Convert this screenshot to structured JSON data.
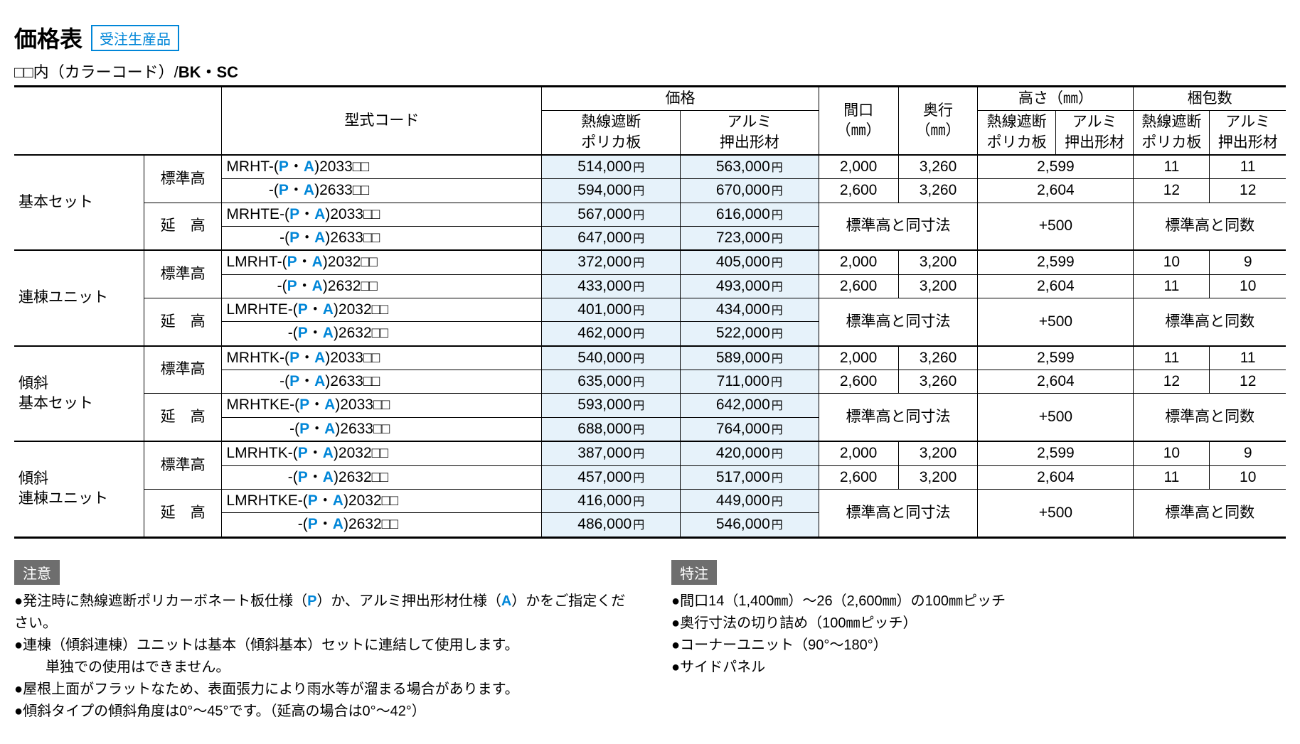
{
  "title": "価格表",
  "order_tag": "受注生産品",
  "color_code_label": "□□内（カラーコード）/",
  "color_code_suffix": "BK・SC",
  "headers": {
    "model": "型式コード",
    "price": "価格",
    "price_sub1": "熱線遮断\nポリカ板",
    "price_sub2": "アルミ\n押出形材",
    "width": "間口\n（㎜）",
    "depth": "奥行\n（㎜）",
    "height": "高さ（㎜）",
    "height_sub1": "熱線遮断\nポリカ板",
    "height_sub2": "アルミ\n押出形材",
    "packs": "梱包数",
    "packs_sub1": "熱線遮断\nポリカ板",
    "packs_sub2": "アルミ\n押出形材"
  },
  "yen": "円",
  "sections": [
    {
      "category": "基本セット",
      "subgroups": [
        {
          "sub": "標準高",
          "sub_spaced": false,
          "rows": [
            {
              "model_prefix": "MRHT-",
              "model_suffix": "2033",
              "p1": "514,000",
              "p2": "563,000",
              "w": "2,000",
              "d": "3,260",
              "h": "2,599",
              "pk1": "11",
              "pk2": "11"
            },
            {
              "model_prefix": "-",
              "model_suffix": "2633",
              "p1": "594,000",
              "p2": "670,000",
              "w": "2,600",
              "d": "3,260",
              "h": "2,604",
              "pk1": "12",
              "pk2": "12"
            }
          ]
        },
        {
          "sub": "延　高",
          "sub_spaced": false,
          "merged": {
            "wd": "標準高と同寸法",
            "h": "+500",
            "pk": "標準高と同数"
          },
          "rows": [
            {
              "model_prefix": "MRHTE-",
              "model_suffix": "2033",
              "p1": "567,000",
              "p2": "616,000"
            },
            {
              "model_prefix": "-",
              "model_suffix": "2633",
              "p1": "647,000",
              "p2": "723,000"
            }
          ]
        }
      ]
    },
    {
      "category": "連棟ユニット",
      "subgroups": [
        {
          "sub": "標準高",
          "sub_spaced": false,
          "rows": [
            {
              "model_prefix": "LMRHT-",
              "model_suffix": "2032",
              "p1": "372,000",
              "p2": "405,000",
              "w": "2,000",
              "d": "3,200",
              "h": "2,599",
              "pk1": "10",
              "pk2": "9"
            },
            {
              "model_prefix": "-",
              "model_suffix": "2632",
              "p1": "433,000",
              "p2": "493,000",
              "w": "2,600",
              "d": "3,200",
              "h": "2,604",
              "pk1": "11",
              "pk2": "10"
            }
          ]
        },
        {
          "sub": "延　高",
          "sub_spaced": false,
          "merged": {
            "wd": "標準高と同寸法",
            "h": "+500",
            "pk": "標準高と同数"
          },
          "rows": [
            {
              "model_prefix": "LMRHTE-",
              "model_suffix": "2032",
              "p1": "401,000",
              "p2": "434,000"
            },
            {
              "model_prefix": "-",
              "model_suffix": "2632",
              "p1": "462,000",
              "p2": "522,000"
            }
          ]
        }
      ]
    },
    {
      "category": "傾斜\n基本セット",
      "subgroups": [
        {
          "sub": "標準高",
          "sub_spaced": false,
          "rows": [
            {
              "model_prefix": "MRHTK-",
              "model_suffix": "2033",
              "p1": "540,000",
              "p2": "589,000",
              "w": "2,000",
              "d": "3,260",
              "h": "2,599",
              "pk1": "11",
              "pk2": "11"
            },
            {
              "model_prefix": "-",
              "model_suffix": "2633",
              "p1": "635,000",
              "p2": "711,000",
              "w": "2,600",
              "d": "3,260",
              "h": "2,604",
              "pk1": "12",
              "pk2": "12"
            }
          ]
        },
        {
          "sub": "延　高",
          "sub_spaced": false,
          "merged": {
            "wd": "標準高と同寸法",
            "h": "+500",
            "pk": "標準高と同数"
          },
          "rows": [
            {
              "model_prefix": "MRHTKE-",
              "model_suffix": "2033",
              "p1": "593,000",
              "p2": "642,000"
            },
            {
              "model_prefix": "-",
              "model_suffix": "2633",
              "p1": "688,000",
              "p2": "764,000"
            }
          ]
        }
      ]
    },
    {
      "category": "傾斜\n連棟ユニット",
      "subgroups": [
        {
          "sub": "標準高",
          "sub_spaced": false,
          "rows": [
            {
              "model_prefix": "LMRHTK-",
              "model_suffix": "2032",
              "p1": "387,000",
              "p2": "420,000",
              "w": "2,000",
              "d": "3,200",
              "h": "2,599",
              "pk1": "10",
              "pk2": "9"
            },
            {
              "model_prefix": "-",
              "model_suffix": "2632",
              "p1": "457,000",
              "p2": "517,000",
              "w": "2,600",
              "d": "3,200",
              "h": "2,604",
              "pk1": "11",
              "pk2": "10"
            }
          ]
        },
        {
          "sub": "延　高",
          "sub_spaced": false,
          "merged": {
            "wd": "標準高と同寸法",
            "h": "+500",
            "pk": "標準高と同数"
          },
          "rows": [
            {
              "model_prefix": "LMRHTKE-",
              "model_suffix": "2032",
              "p1": "416,000",
              "p2": "449,000"
            },
            {
              "model_prefix": "-",
              "model_suffix": "2632",
              "p1": "486,000",
              "p2": "546,000"
            }
          ]
        }
      ]
    }
  ],
  "notes": {
    "caution_tag": "注意",
    "caution_items": [
      "●発注時に熱線遮断ポリカーボネート板仕様（<P>）か、アルミ押出形材仕様（<A>）かをご指定ください。",
      "●連棟（傾斜連棟）ユニットは基本（傾斜基本）セットに連結して使用します。\n　単独での使用はできません。",
      "●屋根上面がフラットなため、表面張力により雨水等が溜まる場合があります。",
      "●傾斜タイプの傾斜角度は0°～45°です。（延高の場合は0°～42°）"
    ],
    "special_tag": "特注",
    "special_items": [
      "●間口14（1,400㎜）～26（2,600㎜）の100㎜ピッチ",
      "●奥行寸法の切り詰め（100㎜ピッチ）",
      "●コーナーユニット（90°～180°）",
      "●サイドパネル"
    ]
  },
  "style": {
    "accent_color": "#0086d8",
    "price_bg": "#e6f2fa",
    "note_tag_bg": "#6e6e6e",
    "font_family": "Hiragino Kaku Gothic ProN",
    "title_fontsize": 32,
    "body_fontsize": 20,
    "table_fontsize": 21
  }
}
